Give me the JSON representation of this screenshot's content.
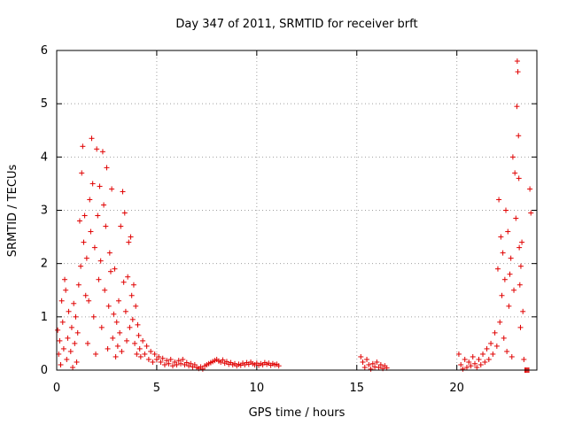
{
  "chart_data": {
    "type": "scatter",
    "title": "Day 347 of 2011, SRMTID for receiver brft",
    "xlabel": "GPS time / hours",
    "ylabel": "SRMTID / TECUs",
    "xlim": [
      0,
      24
    ],
    "ylim": [
      0,
      6
    ],
    "xticks": [
      0,
      5,
      10,
      15,
      20
    ],
    "yticks": [
      0,
      1,
      2,
      3,
      4,
      5,
      6
    ],
    "xtick_labels": [
      "0",
      "5",
      "10",
      "15",
      "20"
    ],
    "ytick_labels": [
      "0",
      "1",
      "2",
      "3",
      "4",
      "5",
      "6"
    ],
    "grid": true,
    "marker": "+",
    "color": "#e00000",
    "series": [
      {
        "name": "SRMTID",
        "points": [
          [
            0.05,
            0.75
          ],
          [
            0.1,
            0.3
          ],
          [
            0.15,
            0.55
          ],
          [
            0.2,
            0.1
          ],
          [
            0.25,
            1.3
          ],
          [
            0.3,
            0.9
          ],
          [
            0.35,
            0.4
          ],
          [
            0.4,
            1.7
          ],
          [
            0.45,
            1.5
          ],
          [
            0.5,
            0.2
          ],
          [
            0.55,
            0.6
          ],
          [
            0.6,
            1.1
          ],
          [
            0.7,
            0.35
          ],
          [
            0.75,
            0.8
          ],
          [
            0.8,
            0.05
          ],
          [
            0.85,
            1.25
          ],
          [
            0.9,
            0.5
          ],
          [
            0.95,
            1.0
          ],
          [
            1.0,
            0.15
          ],
          [
            1.05,
            0.7
          ],
          [
            1.1,
            1.6
          ],
          [
            1.15,
            2.8
          ],
          [
            1.2,
            1.95
          ],
          [
            1.25,
            3.7
          ],
          [
            1.3,
            4.2
          ],
          [
            1.35,
            2.4
          ],
          [
            1.4,
            2.9
          ],
          [
            1.45,
            1.4
          ],
          [
            1.5,
            2.1
          ],
          [
            1.55,
            0.5
          ],
          [
            1.6,
            1.3
          ],
          [
            1.65,
            3.2
          ],
          [
            1.7,
            2.6
          ],
          [
            1.75,
            4.35
          ],
          [
            1.8,
            3.5
          ],
          [
            1.85,
            1.0
          ],
          [
            1.9,
            2.3
          ],
          [
            1.95,
            0.3
          ],
          [
            2.0,
            4.15
          ],
          [
            2.05,
            2.9
          ],
          [
            2.1,
            1.7
          ],
          [
            2.15,
            3.45
          ],
          [
            2.2,
            2.05
          ],
          [
            2.25,
            0.8
          ],
          [
            2.3,
            4.1
          ],
          [
            2.35,
            3.1
          ],
          [
            2.4,
            1.5
          ],
          [
            2.45,
            2.7
          ],
          [
            2.5,
            3.8
          ],
          [
            2.55,
            0.4
          ],
          [
            2.6,
            1.2
          ],
          [
            2.65,
            2.2
          ],
          [
            2.7,
            1.85
          ],
          [
            2.75,
            3.4
          ],
          [
            2.8,
            0.6
          ],
          [
            2.85,
            1.05
          ],
          [
            2.9,
            1.9
          ],
          [
            2.95,
            0.25
          ],
          [
            3.0,
            0.9
          ],
          [
            3.05,
            0.45
          ],
          [
            3.1,
            1.3
          ],
          [
            3.15,
            0.7
          ],
          [
            3.2,
            2.7
          ],
          [
            3.25,
            0.35
          ],
          [
            3.3,
            3.35
          ],
          [
            3.35,
            1.65
          ],
          [
            3.4,
            2.95
          ],
          [
            3.45,
            1.1
          ],
          [
            3.5,
            0.55
          ],
          [
            3.55,
            1.75
          ],
          [
            3.6,
            2.4
          ],
          [
            3.65,
            0.8
          ],
          [
            3.7,
            2.5
          ],
          [
            3.75,
            1.4
          ],
          [
            3.8,
            0.95
          ],
          [
            3.85,
            1.6
          ],
          [
            3.9,
            0.5
          ],
          [
            3.95,
            1.2
          ],
          [
            4.0,
            0.3
          ],
          [
            4.05,
            0.85
          ],
          [
            4.1,
            0.65
          ],
          [
            4.15,
            0.4
          ],
          [
            4.2,
            0.25
          ],
          [
            4.3,
            0.55
          ],
          [
            4.4,
            0.3
          ],
          [
            4.5,
            0.45
          ],
          [
            4.6,
            0.2
          ],
          [
            4.7,
            0.35
          ],
          [
            4.8,
            0.15
          ],
          [
            4.9,
            0.3
          ],
          [
            5.0,
            0.2
          ],
          [
            5.1,
            0.25
          ],
          [
            5.2,
            0.15
          ],
          [
            5.3,
            0.22
          ],
          [
            5.4,
            0.1
          ],
          [
            5.5,
            0.18
          ],
          [
            5.6,
            0.12
          ],
          [
            5.7,
            0.2
          ],
          [
            5.8,
            0.08
          ],
          [
            5.9,
            0.15
          ],
          [
            6.0,
            0.1
          ],
          [
            6.1,
            0.18
          ],
          [
            6.2,
            0.12
          ],
          [
            6.3,
            0.2
          ],
          [
            6.4,
            0.1
          ],
          [
            6.5,
            0.14
          ],
          [
            6.6,
            0.08
          ],
          [
            6.7,
            0.12
          ],
          [
            6.8,
            0.06
          ],
          [
            6.9,
            0.1
          ],
          [
            7.0,
            0.05
          ],
          [
            7.1,
            0.03
          ],
          [
            7.2,
            0.06
          ],
          [
            7.3,
            0.02
          ],
          [
            7.4,
            0.08
          ],
          [
            7.5,
            0.1
          ],
          [
            7.6,
            0.12
          ],
          [
            7.7,
            0.14
          ],
          [
            7.8,
            0.16
          ],
          [
            7.9,
            0.18
          ],
          [
            8.0,
            0.2
          ],
          [
            8.1,
            0.17
          ],
          [
            8.2,
            0.15
          ],
          [
            8.3,
            0.19
          ],
          [
            8.4,
            0.13
          ],
          [
            8.5,
            0.16
          ],
          [
            8.6,
            0.11
          ],
          [
            8.7,
            0.14
          ],
          [
            8.8,
            0.1
          ],
          [
            8.9,
            0.12
          ],
          [
            9.0,
            0.08
          ],
          [
            9.1,
            0.11
          ],
          [
            9.2,
            0.09
          ],
          [
            9.3,
            0.13
          ],
          [
            9.4,
            0.1
          ],
          [
            9.5,
            0.14
          ],
          [
            9.6,
            0.11
          ],
          [
            9.7,
            0.15
          ],
          [
            9.8,
            0.12
          ],
          [
            9.9,
            0.1
          ],
          [
            10.0,
            0.13
          ],
          [
            10.1,
            0.09
          ],
          [
            10.2,
            0.12
          ],
          [
            10.3,
            0.1
          ],
          [
            10.4,
            0.14
          ],
          [
            10.5,
            0.11
          ],
          [
            10.6,
            0.13
          ],
          [
            10.7,
            0.09
          ],
          [
            10.8,
            0.12
          ],
          [
            10.9,
            0.1
          ],
          [
            11.0,
            0.11
          ],
          [
            11.1,
            0.08
          ],
          [
            15.2,
            0.25
          ],
          [
            15.3,
            0.15
          ],
          [
            15.4,
            0.05
          ],
          [
            15.5,
            0.2
          ],
          [
            15.6,
            0.1
          ],
          [
            15.7,
            0.02
          ],
          [
            15.8,
            0.12
          ],
          [
            15.9,
            0.06
          ],
          [
            16.0,
            0.15
          ],
          [
            16.1,
            0.05
          ],
          [
            16.2,
            0.1
          ],
          [
            16.3,
            0.03
          ],
          [
            16.4,
            0.08
          ],
          [
            16.5,
            0.04
          ],
          [
            20.1,
            0.3
          ],
          [
            20.2,
            0.1
          ],
          [
            20.3,
            0.02
          ],
          [
            20.4,
            0.2
          ],
          [
            20.5,
            0.05
          ],
          [
            20.6,
            0.15
          ],
          [
            20.7,
            0.08
          ],
          [
            20.8,
            0.25
          ],
          [
            20.9,
            0.12
          ],
          [
            21.0,
            0.05
          ],
          [
            21.1,
            0.2
          ],
          [
            21.2,
            0.1
          ],
          [
            21.3,
            0.3
          ],
          [
            21.4,
            0.15
          ],
          [
            21.5,
            0.4
          ],
          [
            21.6,
            0.2
          ],
          [
            21.7,
            0.5
          ],
          [
            21.8,
            0.3
          ],
          [
            21.9,
            0.7
          ],
          [
            22.0,
            0.45
          ],
          [
            22.05,
            1.9
          ],
          [
            22.1,
            3.2
          ],
          [
            22.15,
            0.9
          ],
          [
            22.2,
            2.5
          ],
          [
            22.25,
            1.4
          ],
          [
            22.3,
            2.2
          ],
          [
            22.35,
            0.6
          ],
          [
            22.4,
            1.7
          ],
          [
            22.45,
            3.0
          ],
          [
            22.5,
            0.35
          ],
          [
            22.55,
            2.6
          ],
          [
            22.6,
            1.2
          ],
          [
            22.65,
            1.8
          ],
          [
            22.7,
            2.1
          ],
          [
            22.75,
            0.25
          ],
          [
            22.8,
            4.0
          ],
          [
            22.85,
            1.5
          ],
          [
            22.9,
            3.7
          ],
          [
            22.95,
            2.85
          ],
          [
            23.0,
            4.95
          ],
          [
            23.02,
            5.8
          ],
          [
            23.05,
            5.6
          ],
          [
            23.08,
            4.4
          ],
          [
            23.1,
            3.6
          ],
          [
            23.12,
            2.3
          ],
          [
            23.15,
            1.6
          ],
          [
            23.18,
            0.8
          ],
          [
            23.2,
            1.95
          ],
          [
            23.25,
            2.4
          ],
          [
            23.3,
            1.1
          ],
          [
            23.35,
            0.2
          ],
          [
            23.4,
            0.0
          ],
          [
            23.45,
            0.0
          ],
          [
            23.5,
            0.0
          ],
          [
            23.55,
            0.0
          ],
          [
            23.6,
            0.0
          ],
          [
            23.65,
            3.4
          ],
          [
            23.7,
            2.95
          ]
        ]
      }
    ]
  }
}
